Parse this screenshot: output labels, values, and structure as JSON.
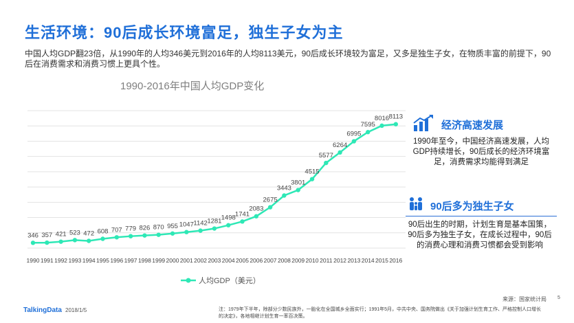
{
  "header": {
    "title": "生活环境：90后成长环境富足，独生子女为主",
    "intro": "中国人均GDP翻23倍，从1990年的人均346美元到2016年的人均8113美元，90后成长环境较为富足，又多是独生子女，在物质丰富的前提下，90后在消费需求和消费习惯上更具个性。"
  },
  "chart_data": {
    "type": "line",
    "title": "1990-2016年中国人均GDP变化",
    "categories": [
      "1990",
      "1991",
      "1992",
      "1993",
      "1994",
      "1995",
      "1996",
      "1997",
      "1998",
      "1999",
      "2000",
      "2001",
      "2002",
      "2003",
      "2004",
      "2005",
      "2006",
      "2007",
      "2008",
      "2009",
      "2010",
      "2011",
      "2012",
      "2013",
      "2014",
      "2015",
      "2016"
    ],
    "series": [
      {
        "name": "人均GDP（美元）",
        "values": [
          346,
          357,
          421,
          523,
          472,
          608,
          707,
          779,
          826,
          870,
          955,
          1047,
          1142,
          1281,
          1498,
          1741,
          2083,
          2675,
          3443,
          3801,
          4515,
          5577,
          6264,
          6995,
          7595,
          8016,
          8113
        ],
        "color": "#2ee8b6"
      }
    ],
    "ylim": [
      0,
      9000
    ],
    "grid": true,
    "legend": "bottom"
  },
  "sidebar": {
    "section1": {
      "heading": "经济高速发展",
      "icon": "chart-growth-icon",
      "text": "1990年至今，中国经济高速发展，人均GDP持续增长，90后成长的经济环境富足，消费需求均能得到满足"
    },
    "section2": {
      "heading": "90后多为独生子女",
      "icon": "family-icon",
      "text": "90后出生的时期，计划生育是基本国策，90后多为独生子女，在成长过程中，90后的消费心理和消费习惯都会受到影响"
    }
  },
  "footer": {
    "source": "来源：国家统计局",
    "logo": "TalkingData",
    "date": "2018/1/5",
    "note": "注：1979年下半年，除部分少数民族外，一胎化在全国城乡全面实行；1991年5月，中共中央、国务院做出《关于加强计划生育工作、严格控制人口增长的决定》，各地相继计划生育一率百决策。",
    "page": "5"
  },
  "colors": {
    "accent": "#1f6fd8",
    "line": "#2ee8b6"
  }
}
